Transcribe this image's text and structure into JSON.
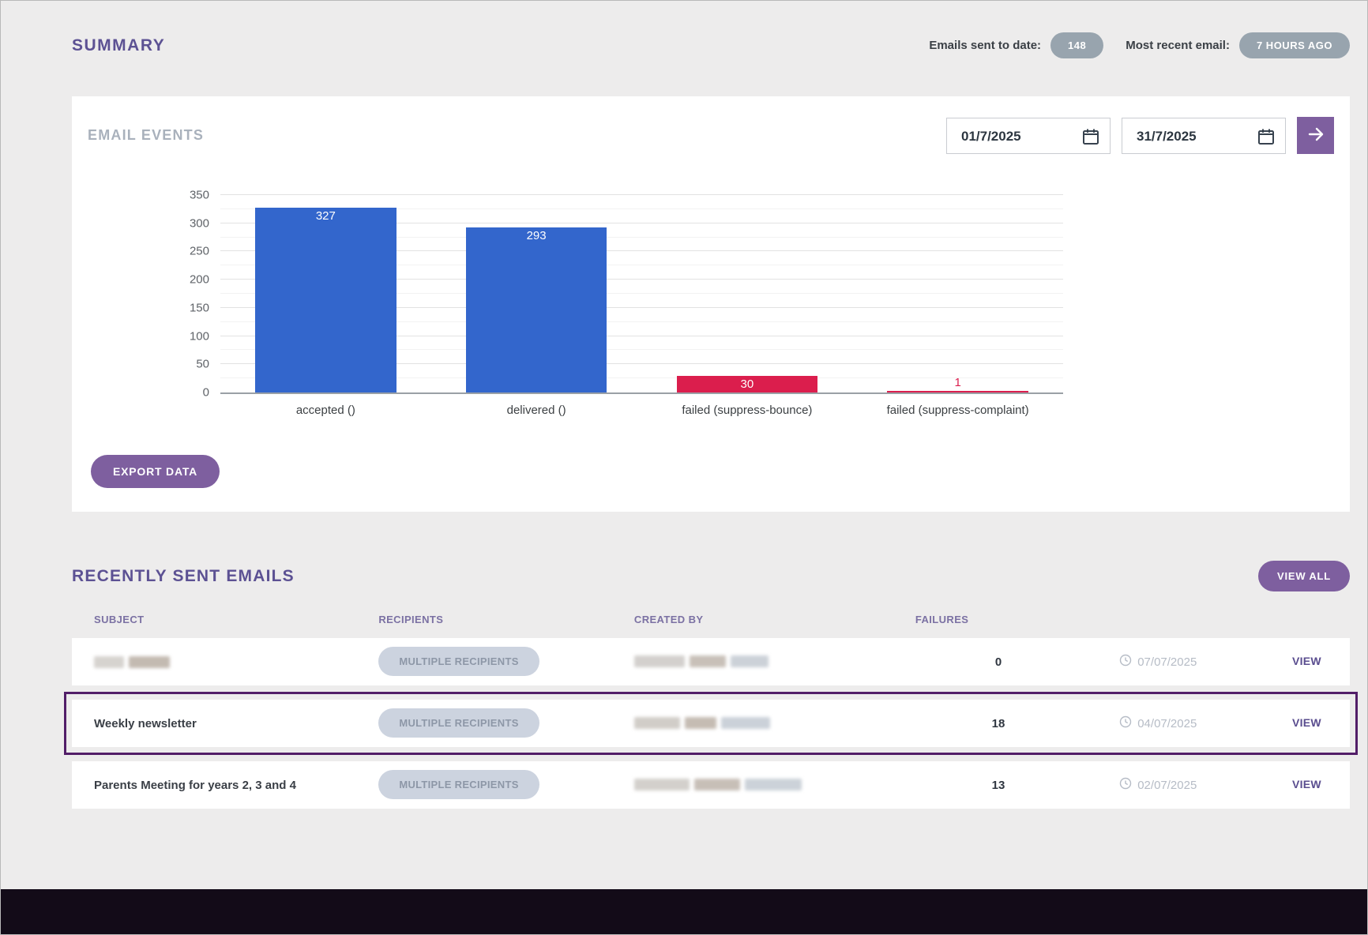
{
  "page": {
    "title": "SUMMARY",
    "stats": [
      {
        "label": "Emails sent to date:",
        "value": "148"
      },
      {
        "label": "Most recent email:",
        "value": "7 HOURS AGO"
      }
    ]
  },
  "email_events": {
    "title": "EMAIL EVENTS",
    "date_from": "01/7/2025",
    "date_to": "31/7/2025",
    "export_label": "EXPORT DATA",
    "icons": {
      "date_picker": "calendar",
      "submit": "arrow-right"
    }
  },
  "chart_data": {
    "type": "bar",
    "title": "",
    "xlabel": "",
    "ylabel": "",
    "categories": [
      "accepted ()",
      "delivered ()",
      "failed (suppress-bounce)",
      "failed (suppress-complaint)"
    ],
    "values": [
      327,
      293,
      30,
      1
    ],
    "colors": [
      "#3366cc",
      "#3366cc",
      "#db1e4d",
      "#db1e4d"
    ],
    "ylim": [
      0,
      350
    ],
    "y_major_step": 50,
    "y_minor_step": 25,
    "grid": true,
    "legend": "none"
  },
  "recent": {
    "title": "RECENTLY SENT EMAILS",
    "view_all_label": "VIEW ALL",
    "columns": [
      "SUBJECT",
      "RECIPIENTS",
      "CREATED BY",
      "FAILURES"
    ],
    "rows": [
      {
        "subject": "",
        "subject_redacted": true,
        "recipients_label": "MULTIPLE RECIPIENTS",
        "created_by_redacted": true,
        "failures": "0",
        "date": "07/07/2025",
        "view_label": "VIEW",
        "highlighted": false
      },
      {
        "subject": "Weekly newsletter",
        "subject_redacted": false,
        "recipients_label": "MULTIPLE RECIPIENTS",
        "created_by_redacted": true,
        "failures": "18",
        "date": "04/07/2025",
        "view_label": "VIEW",
        "highlighted": true
      },
      {
        "subject": "Parents Meeting for years 2, 3 and 4",
        "subject_redacted": false,
        "recipients_label": "MULTIPLE RECIPIENTS",
        "created_by_redacted": true,
        "failures": "13",
        "date": "02/07/2025",
        "view_label": "VIEW",
        "highlighted": false
      }
    ]
  }
}
